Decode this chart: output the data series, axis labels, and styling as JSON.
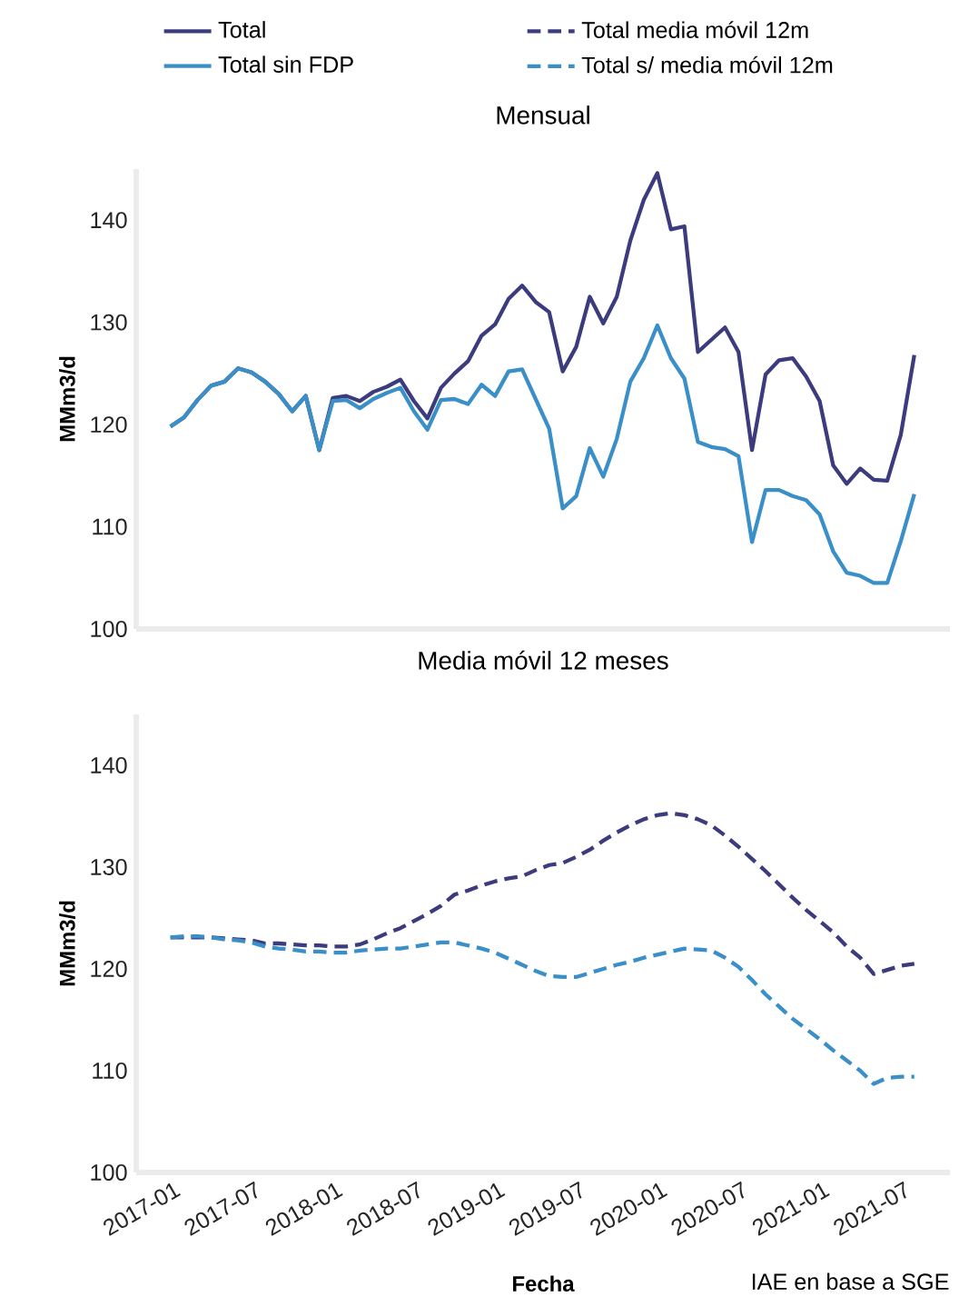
{
  "chart_data": [
    {
      "type": "line",
      "title": "Mensual",
      "ylabel": "MMm3/d",
      "xlim": [
        "2016-10-15",
        "2021-10-20"
      ],
      "ylim": [
        100,
        145
      ],
      "yticks": [
        100,
        110,
        120,
        130,
        140
      ],
      "tick_labels": "y",
      "legend": "top",
      "x": [
        "2017-01",
        "2017-02",
        "2017-03",
        "2017-04",
        "2017-05",
        "2017-06",
        "2017-07",
        "2017-08",
        "2017-09",
        "2017-10",
        "2017-11",
        "2017-12",
        "2018-01",
        "2018-02",
        "2018-03",
        "2018-04",
        "2018-05",
        "2018-06",
        "2018-07",
        "2018-08",
        "2018-09",
        "2018-10",
        "2018-11",
        "2018-12",
        "2019-01",
        "2019-02",
        "2019-03",
        "2019-04",
        "2019-05",
        "2019-06",
        "2019-07",
        "2019-08",
        "2019-09",
        "2019-10",
        "2019-11",
        "2019-12",
        "2020-01",
        "2020-02",
        "2020-03",
        "2020-04",
        "2020-05",
        "2020-06",
        "2020-07",
        "2020-08",
        "2020-09",
        "2020-10",
        "2020-11",
        "2020-12",
        "2021-01",
        "2021-02",
        "2021-03",
        "2021-04",
        "2021-05",
        "2021-06",
        "2021-07",
        "2021-08"
      ],
      "series": [
        {
          "name": "Total",
          "color": "#3c3b7d",
          "line_style": "solid",
          "values": [
            119.8,
            120.7,
            122.4,
            123.8,
            124.2,
            125.5,
            125.1,
            124.2,
            123.0,
            121.3,
            122.8,
            117.5,
            122.6,
            122.8,
            122.3,
            123.2,
            123.7,
            124.4,
            122.3,
            120.6,
            123.6,
            125.0,
            126.2,
            128.7,
            129.8,
            132.3,
            133.6,
            132.0,
            131.0,
            125.2,
            127.6,
            132.5,
            129.9,
            132.5,
            138.0,
            142.0,
            144.6,
            139.1,
            139.4,
            127.1,
            128.3,
            129.5,
            127.1,
            117.5,
            124.9,
            126.3,
            126.5,
            124.7,
            122.3,
            116.0,
            114.2,
            115.7,
            114.6,
            114.5,
            119.0,
            126.8
          ]
        },
        {
          "name": "Total sin FDP",
          "color": "#3a8fc9",
          "line_style": "solid",
          "values": [
            119.8,
            120.7,
            122.4,
            123.8,
            124.2,
            125.5,
            125.1,
            124.2,
            123.0,
            121.3,
            122.8,
            117.5,
            122.3,
            122.4,
            121.6,
            122.5,
            123.1,
            123.6,
            121.3,
            119.5,
            122.4,
            122.5,
            122.0,
            123.9,
            122.8,
            125.2,
            125.4,
            122.5,
            119.6,
            111.8,
            113.0,
            117.7,
            114.9,
            118.6,
            124.2,
            126.5,
            129.7,
            126.5,
            124.5,
            118.3,
            117.8,
            117.6,
            116.9,
            108.5,
            113.6,
            113.6,
            113.0,
            112.6,
            111.2,
            107.6,
            105.5,
            105.2,
            104.5,
            104.5,
            108.6,
            113.2
          ]
        }
      ]
    },
    {
      "type": "line",
      "title": "Media móvil 12 meses",
      "ylabel": "MMm3/d",
      "xlabel": "Fecha",
      "xlim": [
        "2016-10-15",
        "2021-10-20"
      ],
      "xticks": [
        "2017-01",
        "2017-07",
        "2018-01",
        "2018-07",
        "2019-01",
        "2019-07",
        "2020-01",
        "2020-07",
        "2021-01",
        "2021-07"
      ],
      "ylim": [
        100,
        145
      ],
      "yticks": [
        100,
        110,
        120,
        130,
        140
      ],
      "legend": "top",
      "annotations": [
        "IAE en base a SGE"
      ],
      "x": [
        "2017-01",
        "2017-02",
        "2017-03",
        "2017-04",
        "2017-05",
        "2017-06",
        "2017-07",
        "2017-08",
        "2017-09",
        "2017-10",
        "2017-11",
        "2017-12",
        "2018-01",
        "2018-02",
        "2018-03",
        "2018-04",
        "2018-05",
        "2018-06",
        "2018-07",
        "2018-08",
        "2018-09",
        "2018-10",
        "2018-11",
        "2018-12",
        "2019-01",
        "2019-02",
        "2019-03",
        "2019-04",
        "2019-05",
        "2019-06",
        "2019-07",
        "2019-08",
        "2019-09",
        "2019-10",
        "2019-11",
        "2019-12",
        "2020-01",
        "2020-02",
        "2020-03",
        "2020-04",
        "2020-05",
        "2020-06",
        "2020-07",
        "2020-08",
        "2020-09",
        "2020-10",
        "2020-11",
        "2020-12",
        "2021-01",
        "2021-02",
        "2021-03",
        "2021-04",
        "2021-05",
        "2021-06",
        "2021-07",
        "2021-08"
      ],
      "series": [
        {
          "name": "Total media móvil 12m",
          "color": "#3c3b7d",
          "line_style": "dashed",
          "values": [
            123.1,
            123.1,
            123.1,
            123.1,
            123.0,
            122.9,
            122.8,
            122.5,
            122.5,
            122.4,
            122.3,
            122.3,
            122.2,
            122.2,
            122.4,
            122.9,
            123.5,
            124.0,
            124.7,
            125.4,
            126.2,
            127.3,
            127.7,
            128.2,
            128.6,
            128.9,
            129.1,
            129.7,
            130.2,
            130.4,
            131.0,
            131.7,
            132.6,
            133.4,
            134.1,
            134.7,
            135.1,
            135.3,
            135.1,
            134.7,
            134.1,
            133.1,
            132.0,
            130.8,
            129.6,
            128.3,
            127.0,
            125.8,
            124.7,
            123.6,
            122.2,
            121.1,
            119.5,
            119.9,
            120.3,
            120.5
          ]
        },
        {
          "name": "Total s/ media móvil 12m",
          "color": "#3a8fc9",
          "line_style": "dashed",
          "values": [
            123.1,
            123.2,
            123.2,
            123.1,
            122.9,
            122.8,
            122.6,
            122.2,
            122.0,
            121.9,
            121.7,
            121.7,
            121.6,
            121.6,
            121.8,
            121.9,
            122.0,
            122.0,
            122.2,
            122.4,
            122.6,
            122.6,
            122.3,
            122.0,
            121.6,
            121.0,
            120.4,
            119.8,
            119.3,
            119.2,
            119.2,
            119.6,
            120.0,
            120.4,
            120.7,
            121.1,
            121.4,
            121.7,
            122.0,
            121.9,
            121.8,
            121.1,
            120.2,
            118.9,
            117.5,
            116.3,
            115.1,
            114.1,
            113.1,
            112.0,
            111.0,
            110.0,
            108.7,
            109.3,
            109.4,
            109.4
          ]
        }
      ]
    }
  ]
}
